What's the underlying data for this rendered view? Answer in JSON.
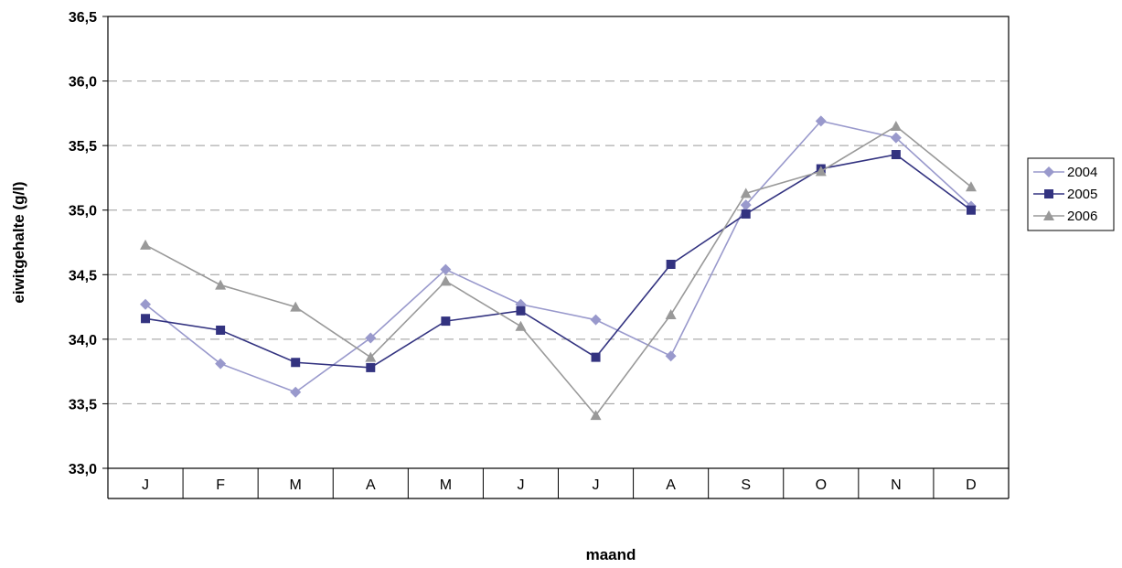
{
  "chart_data": {
    "type": "line",
    "xlabel": "maand",
    "ylabel": "eiwitgehalte (g/l)",
    "categories": [
      "J",
      "F",
      "M",
      "A",
      "M",
      "J",
      "J",
      "A",
      "S",
      "O",
      "N",
      "D"
    ],
    "ylim": [
      33.0,
      36.5
    ],
    "yticks": [
      "33,0",
      "33,5",
      "34,0",
      "34,5",
      "35,0",
      "35,5",
      "36,0",
      "36,5"
    ],
    "ytick_values": [
      33.0,
      33.5,
      34.0,
      34.5,
      35.0,
      35.5,
      36.0,
      36.5
    ],
    "grid": "horizontal dashed",
    "legend_position": "right",
    "series": [
      {
        "name": "2004",
        "color": "#9999cc",
        "marker": "diamond",
        "values": [
          34.27,
          33.81,
          33.59,
          34.01,
          34.54,
          34.27,
          34.15,
          33.87,
          35.04,
          35.69,
          35.56,
          35.03
        ]
      },
      {
        "name": "2005",
        "color": "#333380",
        "marker": "square",
        "values": [
          34.16,
          34.07,
          33.82,
          33.78,
          34.14,
          34.22,
          33.86,
          34.58,
          34.97,
          35.32,
          35.43,
          35.0
        ]
      },
      {
        "name": "2006",
        "color": "#999999",
        "marker": "triangle",
        "values": [
          34.73,
          34.42,
          34.25,
          33.86,
          34.45,
          34.1,
          33.41,
          34.19,
          35.13,
          35.3,
          35.65,
          35.18
        ]
      }
    ]
  }
}
